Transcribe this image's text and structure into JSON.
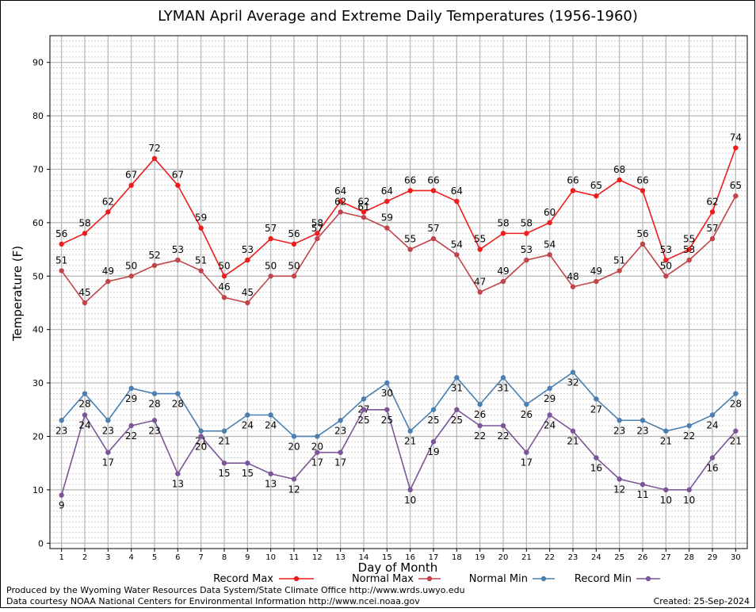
{
  "chart_data": {
    "type": "line",
    "title": "LYMAN April Average and Extreme Daily Temperatures (1956-1960)",
    "xlabel": "Day of Month",
    "ylabel": "Temperature (F)",
    "ylim": [
      -1,
      95
    ],
    "yticks": [
      0,
      10,
      20,
      30,
      40,
      50,
      60,
      70,
      80,
      90
    ],
    "categories": [
      "1",
      "2",
      "3",
      "4",
      "5",
      "6",
      "7",
      "8",
      "9",
      "10",
      "11",
      "12",
      "13",
      "14",
      "15",
      "16",
      "17",
      "18",
      "19",
      "20",
      "21",
      "22",
      "23",
      "24",
      "25",
      "26",
      "27",
      "28",
      "29",
      "30"
    ],
    "grid": true,
    "legend_position": "bottom",
    "series": [
      {
        "name": "Record Max",
        "color": "#ee1c1c",
        "label_position": "above",
        "values": [
          56,
          58,
          62,
          67,
          72,
          67,
          59,
          50,
          53,
          57,
          56,
          58,
          64,
          62,
          64,
          66,
          66,
          64,
          55,
          58,
          58,
          60,
          66,
          65,
          68,
          66,
          53,
          55,
          62,
          74
        ]
      },
      {
        "name": "Normal Max",
        "color": "#c0454a",
        "label_position": "above",
        "values": [
          51,
          45,
          49,
          50,
          52,
          53,
          51,
          46,
          45,
          50,
          50,
          57,
          62,
          61,
          59,
          55,
          57,
          54,
          47,
          49,
          53,
          54,
          48,
          49,
          51,
          56,
          50,
          53,
          57,
          65
        ]
      },
      {
        "name": "Normal Min",
        "color": "#4a7fb0",
        "label_position": "below",
        "values": [
          23,
          28,
          23,
          29,
          28,
          28,
          21,
          21,
          24,
          24,
          20,
          20,
          23,
          27,
          30,
          21,
          25,
          31,
          26,
          31,
          26,
          29,
          32,
          27,
          23,
          23,
          21,
          22,
          24,
          28
        ]
      },
      {
        "name": "Record Min",
        "color": "#7b5597",
        "label_position": "below",
        "values": [
          9,
          24,
          17,
          22,
          23,
          13,
          20,
          15,
          15,
          13,
          12,
          17,
          17,
          25,
          25,
          10,
          19,
          25,
          22,
          22,
          17,
          24,
          21,
          16,
          12,
          11,
          10,
          10,
          16,
          21
        ]
      }
    ]
  },
  "footer": {
    "credit_line1": "Produced by the Wyoming Water Resources Data System/State Climate Office http://www.wrds.uwyo.edu",
    "credit_line2": "Data courtesy NOAA National Centers for Environmental Information http://www.ncei.noaa.gov",
    "created": "Created:  25-Sep-2024"
  }
}
